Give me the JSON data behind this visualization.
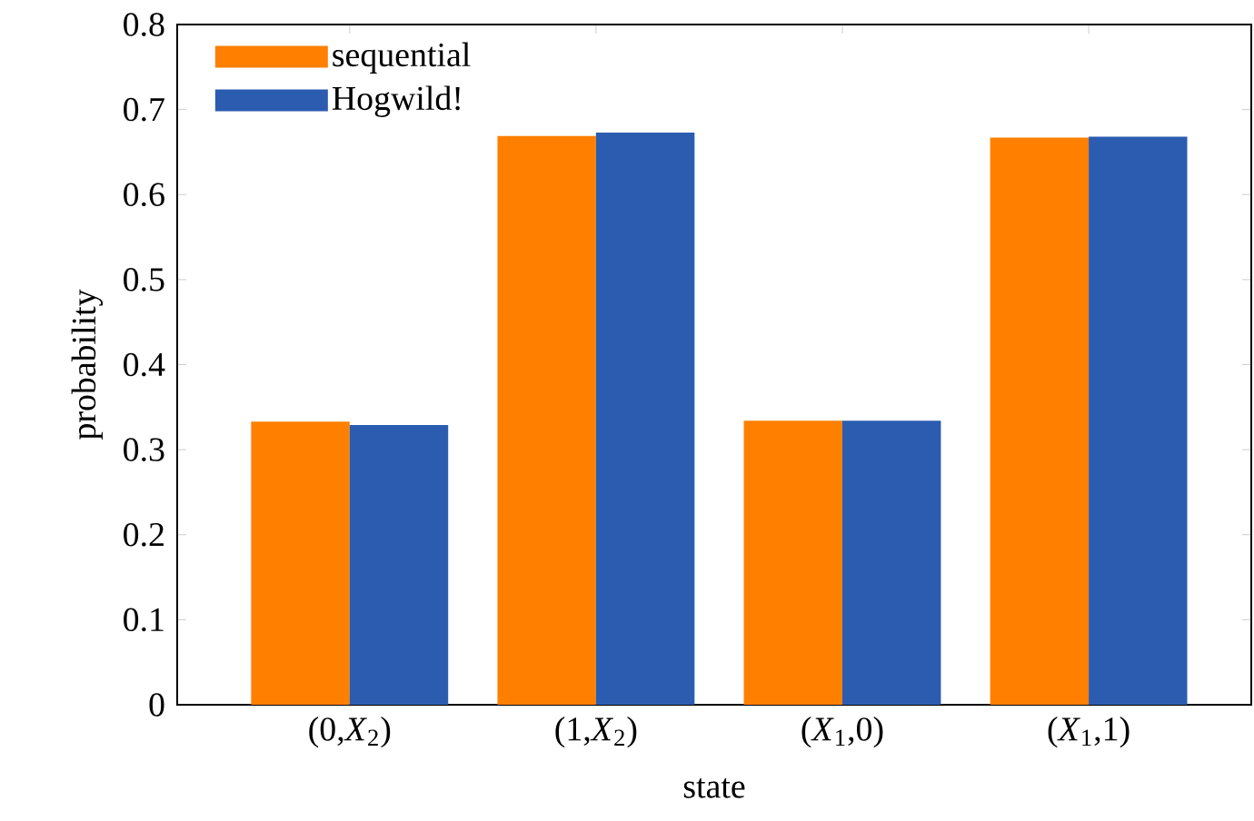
{
  "chart_data": {
    "type": "bar",
    "xlabel": "state",
    "ylabel": "probability",
    "categories": [
      "(0,*X*$_{2}$)",
      "(1,*X*$_{2}$)",
      "(*X*$_{1}$,0)",
      "(*X*$_{1}$,1)"
    ],
    "series": [
      {
        "name": "sequential",
        "color": "#ff8000",
        "values": [
          0.333,
          0.669,
          0.334,
          0.667
        ]
      },
      {
        "name": "Hogwild!",
        "color": "#2b5cb0",
        "values": [
          0.329,
          0.673,
          0.334,
          0.668
        ]
      }
    ],
    "ylim": [
      0,
      0.8
    ],
    "yticks": [
      0,
      0.1,
      0.2,
      0.3,
      0.4,
      0.5,
      0.6,
      0.7,
      0.8
    ],
    "legend": "top left",
    "grid": false
  }
}
